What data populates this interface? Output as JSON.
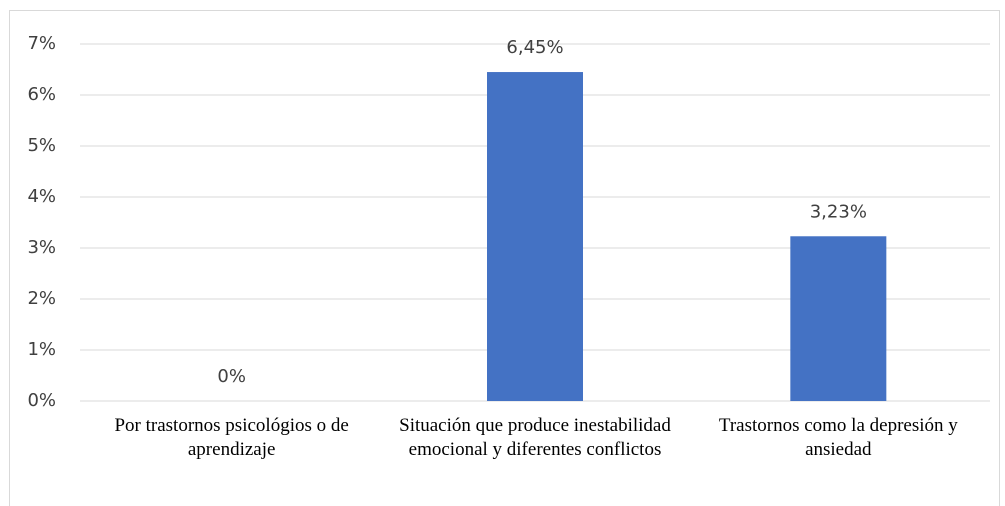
{
  "chart_data": {
    "type": "bar",
    "categories": [
      "Por trastornos psicológios o de aprendizaje",
      "Situación que produce inestabilidad emocional y diferentes conflictos",
      "Trastornos como la depresión y ansiedad"
    ],
    "values": [
      0,
      6.45,
      3.23
    ],
    "value_labels": [
      "0%",
      "6,45%",
      "3,23%"
    ],
    "color": "#4472c4",
    "ylim": [
      0,
      7
    ],
    "yticks": [
      {
        "value": 0,
        "label": "0%"
      },
      {
        "value": 1,
        "label": "1%"
      },
      {
        "value": 2,
        "label": "2%"
      },
      {
        "value": 3,
        "label": "3%"
      },
      {
        "value": 4,
        "label": "4%"
      },
      {
        "value": 5,
        "label": "5%"
      },
      {
        "value": 6,
        "label": "6%"
      },
      {
        "value": 7,
        "label": "7%"
      }
    ],
    "grid": true
  }
}
